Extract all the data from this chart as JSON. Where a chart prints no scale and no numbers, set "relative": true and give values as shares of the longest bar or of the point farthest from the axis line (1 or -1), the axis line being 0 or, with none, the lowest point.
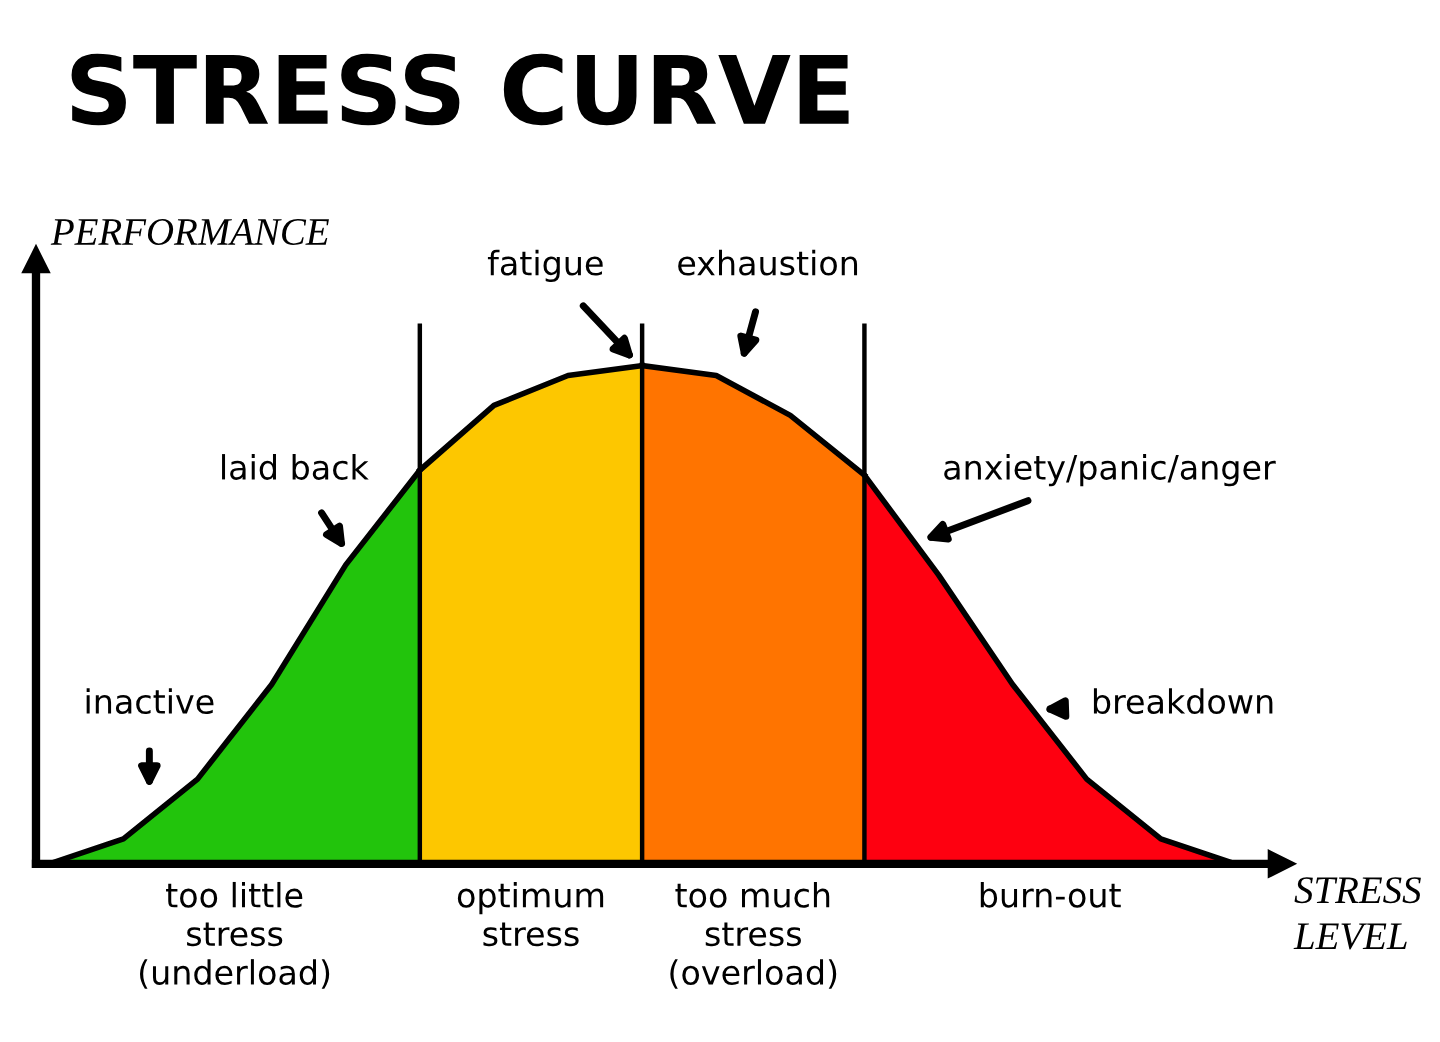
{
  "chart_data": {
    "type": "area",
    "relative": true,
    "title": "STRESS CURVE",
    "ylabel": "PERFORMANCE",
    "xlabel": "STRESS\nLEVEL",
    "categories": [
      null,
      null,
      null,
      null,
      null,
      null,
      null,
      null,
      null,
      null,
      null,
      null,
      null,
      null,
      null,
      null,
      null
    ],
    "series": [
      {
        "color": "#22c40c",
        "values": [
          0,
          0.05,
          0.17,
          0.36,
          0.6,
          0.79,
          null,
          null,
          null,
          null,
          null,
          null,
          null,
          null,
          null,
          null,
          null
        ]
      },
      {
        "color": "#fdc700",
        "values": [
          null,
          null,
          null,
          null,
          null,
          0.79,
          0.92,
          0.98,
          1,
          null,
          null,
          null,
          null,
          null,
          null,
          null,
          null
        ]
      },
      {
        "color": "#ff7400",
        "values": [
          null,
          null,
          null,
          null,
          null,
          null,
          null,
          null,
          1,
          0.98,
          0.9,
          0.78,
          null,
          null,
          null,
          null,
          null
        ]
      },
      {
        "color": "#fe0010",
        "values": [
          null,
          null,
          null,
          null,
          null,
          null,
          null,
          null,
          null,
          null,
          null,
          0.78,
          0.58,
          0.36,
          0.17,
          0.05,
          0
        ]
      }
    ],
    "annotations": [
      "inactive",
      "laid back",
      "fatigue",
      "exhaustion",
      "anxiety/panic/anger",
      "breakdown",
      "too little\nstress\n(underload)",
      "optimum\nstress",
      "too much\nstress\n(overload)",
      "burn-out"
    ],
    "grid": "x",
    "legend": false
  }
}
